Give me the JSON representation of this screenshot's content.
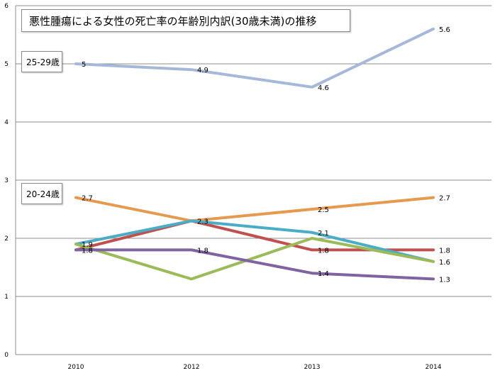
{
  "chart_data": {
    "type": "line",
    "title": "悪性腫瘍による女性の死亡率の年齢別内訳(30歳未満)の推移",
    "categories": [
      "2010",
      "2012",
      "2013",
      "2014"
    ],
    "ylim": [
      0,
      6
    ],
    "yticks": [
      "0",
      "1",
      "2",
      "3",
      "4",
      "5",
      "6"
    ],
    "grid": true,
    "annotations": [
      "25-29歳",
      "20-24歳"
    ],
    "series": [
      {
        "color": "#a5b8d8",
        "values": [
          5,
          4.9,
          4.6,
          5.6
        ],
        "labels": [
          "5",
          "4.9",
          "4.6",
          "5.6"
        ]
      },
      {
        "color": "#e69a4f",
        "values": [
          2.7,
          2.3,
          2.5,
          2.7
        ],
        "labels": [
          "2.7",
          "",
          "2.5",
          "2.7"
        ]
      },
      {
        "color": "#c0504d",
        "values": [
          1.8,
          2.3,
          1.8,
          1.8
        ],
        "labels": [
          "1.8",
          "2.3",
          "1.8",
          "1.8"
        ]
      },
      {
        "color": "#4bacc6",
        "values": [
          1.9,
          2.3,
          2.1,
          1.6
        ],
        "labels": [
          "1.9",
          "",
          "2.1",
          "1.6"
        ]
      },
      {
        "color": "#9bbb59",
        "values": [
          1.9,
          1.3,
          2.0,
          1.6
        ],
        "labels": [
          "",
          "",
          "",
          ""
        ]
      },
      {
        "color": "#8064a2",
        "values": [
          1.8,
          1.8,
          1.4,
          1.3
        ],
        "labels": [
          "",
          "1.8",
          "1.4",
          "1.3"
        ]
      }
    ]
  }
}
